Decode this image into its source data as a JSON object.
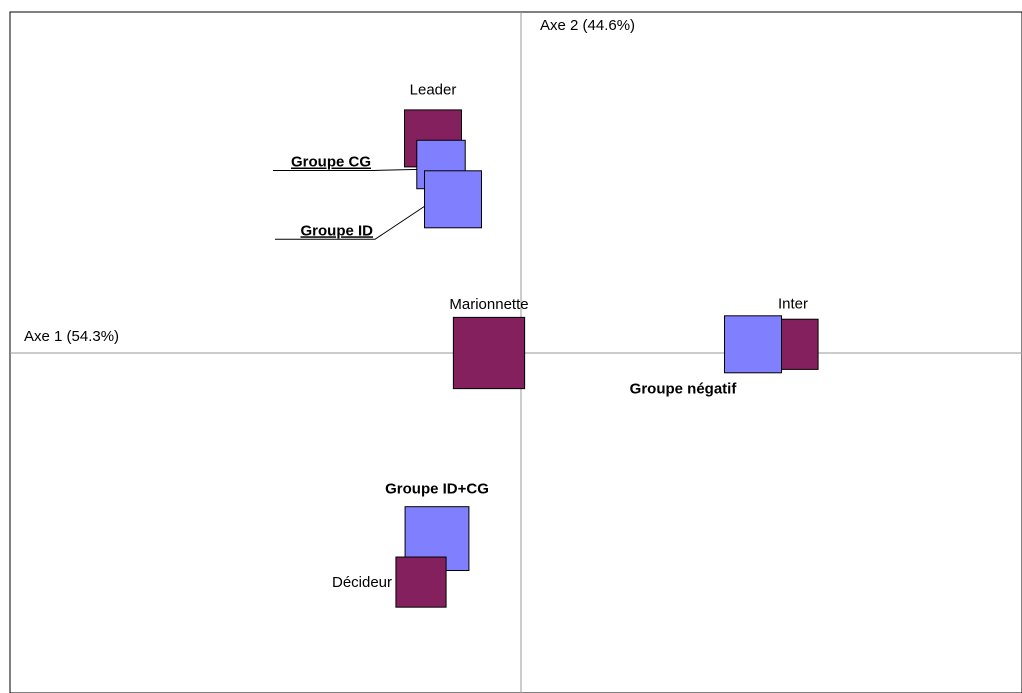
{
  "chart_data": {
    "type": "scatter",
    "title": "",
    "xlabel": "Axe 1 (54.3%)",
    "ylabel": "Axe 2 (44.6%)",
    "xlim": [
      -1.0,
      1.0
    ],
    "ylim": [
      -1.0,
      1.0
    ],
    "grid": false,
    "colors": {
      "groupe": "#8080ff",
      "profil": "#85205f",
      "border": "#000000"
    },
    "points": [
      {
        "label": "Leader",
        "series": "profil",
        "x": -0.22,
        "y": 0.74,
        "weight": 1.0
      },
      {
        "label": "Groupe CG",
        "series": "groupe",
        "x": -0.2,
        "y": 0.65,
        "weight": 0.85
      },
      {
        "label": "Groupe ID",
        "series": "groupe",
        "x": -0.17,
        "y": 0.53,
        "weight": 1.0
      },
      {
        "label": "Marionnette",
        "series": "profil",
        "x": -0.08,
        "y": 0.0,
        "weight": 1.25
      },
      {
        "label": "Inter",
        "series": "profil",
        "x": 0.68,
        "y": 0.03,
        "weight": 0.88
      },
      {
        "label": "Groupe négatif",
        "series": "groupe",
        "x": 0.58,
        "y": 0.03,
        "weight": 1.0
      },
      {
        "label": "Groupe ID+CG",
        "series": "groupe",
        "x": -0.21,
        "y": -0.64,
        "weight": 1.12
      },
      {
        "label": "Décideur",
        "series": "profil",
        "x": -0.25,
        "y": -0.79,
        "weight": 0.88
      }
    ]
  }
}
